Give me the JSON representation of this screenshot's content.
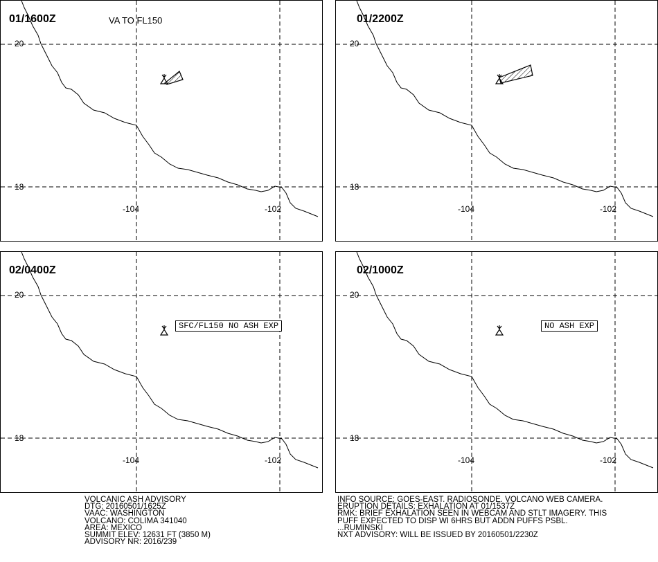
{
  "panels": [
    {
      "time": "01/1600Z",
      "va_label": "VA TO FL150",
      "note": ""
    },
    {
      "time": "01/2200Z",
      "va_label": "",
      "note": ""
    },
    {
      "time": "02/0400Z",
      "va_label": "",
      "note": "SFC/FL150 NO ASH EXP"
    },
    {
      "time": "02/1000Z",
      "va_label": "",
      "note": "NO ASH EXP"
    }
  ],
  "grid_labels": {
    "lat_20": "20",
    "lat_18": "18",
    "lon_104": "-104",
    "lon_102": "-102"
  },
  "advisory": {
    "lines": [
      "VOLCANIC ASH ADVISORY",
      "DTG: 20160501/1625Z",
      "VAAC: WASHINGTON",
      "VOLCANO: COLIMA 341040",
      "AREA: MEXICO",
      "SUMMIT ELEV: 12631 FT (3850 M)",
      "ADVISORY NR: 2016/239"
    ]
  },
  "info": {
    "lines": [
      "INFO SOURCE: GOES-EAST. RADIOSONDE. VOLCANO WEB CAMERA.",
      "ERUPTION DETAILS: EXHALATION AT 01/1537Z",
      "RMK: BRIEF EXHALATION SEEN IN WEBCAM AND STLT IMAGERY. THIS",
      "PUFF EXPECTED TO DISP WI 6HRS BUT ADDN PUFFS PSBL.",
      "...RUMINSKI",
      "NXT ADVISORY: WILL BE ISSUED BY 20160501/2230Z"
    ]
  },
  "colors": {
    "line": "#000000",
    "background": "#ffffff"
  },
  "icons": {
    "volcano": "volcano-icon",
    "ash_area": "ash-polygon"
  }
}
